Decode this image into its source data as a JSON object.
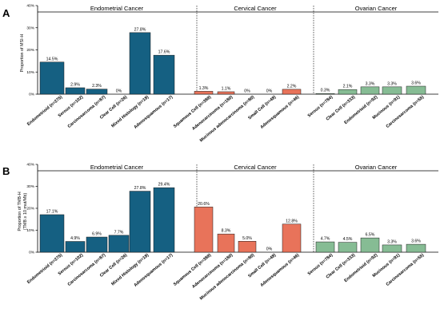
{
  "colors": {
    "Endometrial Cancer": "#156082",
    "Cervical Cancer": "#E8735A",
    "Ovarian Cancer": "#86BC94"
  },
  "chart_data": [
    {
      "panel": "A",
      "type": "bar",
      "ylabel": "Proportion of MSI-H",
      "ylim": [
        0,
        40
      ],
      "yticks": [
        "0%",
        "10%",
        "20%",
        "30%",
        "40%"
      ],
      "groups": [
        "Endometrial Cancer",
        "Cervical Cancer",
        "Ovarian Cancer"
      ],
      "categories": [
        "Endometrioid (n=275)",
        "Serous (n=102)",
        "Carcinosarcoma (n=87)",
        "Clear Cell (n=26)",
        "Mixed Histology (n=18)",
        "Adenosquamous (n=17)",
        "Squamous Cell (n=389)",
        "Adenocarcinoma (n=180)",
        "Mucinous adenocarcinoma (n=80)",
        "Small Cell (n=48)",
        "Adenosquamous (n=46)",
        "Serous (n=784)",
        "Clear Cell (n=333)",
        "Endometrioid (n=92)",
        "Mucinous (n=91)",
        "Carcinosarcoma (n=55)"
      ],
      "category_groups": [
        0,
        0,
        0,
        0,
        0,
        0,
        1,
        1,
        1,
        1,
        1,
        2,
        2,
        2,
        2,
        2
      ],
      "values": [
        14.5,
        2.9,
        2.3,
        0,
        27.8,
        17.6,
        1.3,
        1.1,
        0,
        0,
        2.2,
        0.3,
        2.1,
        3.3,
        3.3,
        3.6
      ],
      "labels": [
        "14.5%",
        "2.9%",
        "2.3%",
        "0%",
        "27.8%",
        "17.6%",
        "1.3%",
        "1.1%",
        "0%",
        "0%",
        "2.2%",
        "0.3%",
        "2.1%",
        "3.3%",
        "3.3%",
        "3.6%"
      ]
    },
    {
      "panel": "B",
      "type": "bar",
      "ylabel": "Proportion of TMB-H",
      "ylabel2": "(TMB ≥ 10 mut/Mb)",
      "ylim": [
        0,
        40
      ],
      "yticks": [
        "0%",
        "10%",
        "20%",
        "30%",
        "40%"
      ],
      "groups": [
        "Endometrial Cancer",
        "Cervical Cancer",
        "Ovarian Cancer"
      ],
      "categories": [
        "Endometrioid (n=275)",
        "Serous (n=102)",
        "Carcinosarcoma (n=87)",
        "Clear Cell (n=26)",
        "Mixed Histology (n=18)",
        "Adenosquamous (n=17)",
        "Squamous Cell (n=389)",
        "Adenocarcinoma (n=180)",
        "Mucinous adenocarcinoma (n=80)",
        "Small Cell (n=48)",
        "Adenosquamous (n=46)",
        "Serous (n=784)",
        "Clear Cell (n=333)",
        "Endometrioid (n=92)",
        "Mucinous (n=91)",
        "Carcinosarcoma (n=55)"
      ],
      "category_groups": [
        0,
        0,
        0,
        0,
        0,
        0,
        1,
        1,
        1,
        1,
        1,
        2,
        2,
        2,
        2,
        2
      ],
      "values": [
        17.1,
        4.9,
        6.9,
        7.7,
        27.8,
        29.4,
        20.6,
        8.3,
        5.0,
        0,
        12.8,
        4.7,
        4.5,
        6.5,
        3.3,
        3.6
      ],
      "labels": [
        "17.1%",
        "4.9%",
        "6.9%",
        "7.7%",
        "27.8%",
        "29.4%",
        "20.6%",
        "8.3%",
        "5.0%",
        "0%",
        "12.8%",
        "4.7%",
        "4.5%",
        "6.5%",
        "3.3%",
        "3.6%"
      ]
    }
  ]
}
